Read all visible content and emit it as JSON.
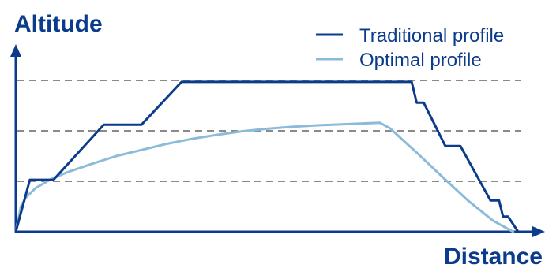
{
  "chart_data": {
    "type": "line",
    "xlabel": "Distance",
    "ylabel": "Altitude",
    "grid": "dashed horizontal reference lines",
    "legend_position": "top-right",
    "colors": {
      "axis": "#0B3C8C",
      "grid": "#8A8A8A",
      "traditional": "#0B3C8C",
      "optimal": "#8BBBD8",
      "text": "#0B3C8C"
    },
    "grid_levels": [
      1,
      2,
      3
    ],
    "series": [
      {
        "name": "Traditional profile",
        "key": "traditional",
        "points": [
          [
            0,
            0
          ],
          [
            0.28,
            1.03
          ],
          [
            0.75,
            1.03
          ],
          [
            1.75,
            2.12
          ],
          [
            2.5,
            2.12
          ],
          [
            3.3,
            2.97
          ],
          [
            7.88,
            2.97
          ],
          [
            7.98,
            2.56
          ],
          [
            8.12,
            2.56
          ],
          [
            8.55,
            1.7
          ],
          [
            8.85,
            1.7
          ],
          [
            9.45,
            0.62
          ],
          [
            9.62,
            0.62
          ],
          [
            9.7,
            0.3
          ],
          [
            9.8,
            0.3
          ],
          [
            10.0,
            0
          ]
        ]
      },
      {
        "name": "Optimal profile",
        "key": "optimal",
        "points": [
          [
            0,
            0
          ],
          [
            0.1,
            0.5
          ],
          [
            0.2,
            0.68
          ],
          [
            0.4,
            0.87
          ],
          [
            0.7,
            1.04
          ],
          [
            1.0,
            1.17
          ],
          [
            1.5,
            1.34
          ],
          [
            2.0,
            1.5
          ],
          [
            2.5,
            1.62
          ],
          [
            3.0,
            1.74
          ],
          [
            3.5,
            1.84
          ],
          [
            4.0,
            1.92
          ],
          [
            4.5,
            1.99
          ],
          [
            5.0,
            2.04
          ],
          [
            5.5,
            2.08
          ],
          [
            6.0,
            2.11
          ],
          [
            6.5,
            2.13
          ],
          [
            7.0,
            2.15
          ],
          [
            7.25,
            2.16
          ],
          [
            7.45,
            2.05
          ],
          [
            8.0,
            1.55
          ],
          [
            8.5,
            1.08
          ],
          [
            9.0,
            0.62
          ],
          [
            9.5,
            0.22
          ],
          [
            9.9,
            0
          ]
        ]
      }
    ]
  }
}
